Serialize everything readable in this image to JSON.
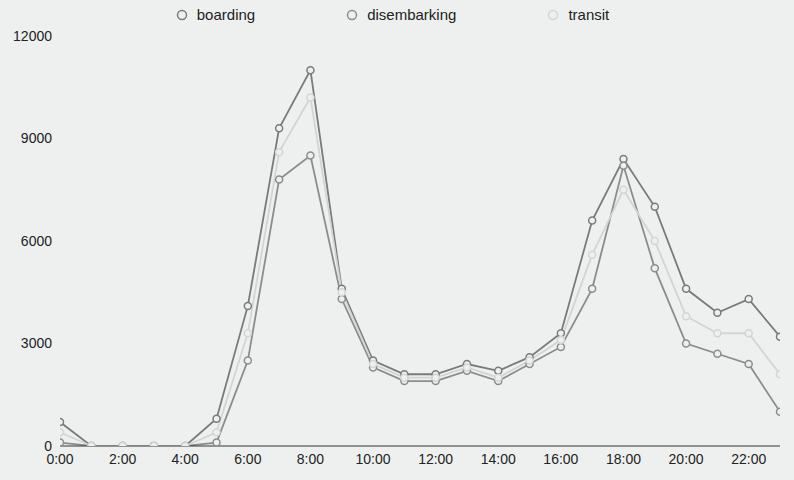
{
  "chart_data": {
    "type": "line",
    "x": [
      0,
      1,
      2,
      3,
      4,
      5,
      6,
      7,
      8,
      9,
      10,
      11,
      12,
      13,
      14,
      15,
      16,
      17,
      18,
      19,
      20,
      21,
      22,
      23
    ],
    "xlim": [
      0,
      23
    ],
    "xticks": [
      {
        "value": 0,
        "label": "0:00"
      },
      {
        "value": 2,
        "label": "2:00"
      },
      {
        "value": 4,
        "label": "4:00"
      },
      {
        "value": 6,
        "label": "6:00"
      },
      {
        "value": 8,
        "label": "8:00"
      },
      {
        "value": 10,
        "label": "10:00"
      },
      {
        "value": 12,
        "label": "12:00"
      },
      {
        "value": 14,
        "label": "14:00"
      },
      {
        "value": 16,
        "label": "16:00"
      },
      {
        "value": 18,
        "label": "18:00"
      },
      {
        "value": 20,
        "label": "20:00"
      },
      {
        "value": 22,
        "label": "22:00"
      }
    ],
    "ylim": [
      0,
      12000
    ],
    "yticks": [
      0,
      3000,
      6000,
      9000,
      12000
    ],
    "grid": false,
    "legend": "top",
    "marker": "circle",
    "series": [
      {
        "name": "boarding",
        "color": "#7a7a7a",
        "values": [
          700,
          0,
          0,
          0,
          0,
          800,
          4100,
          9300,
          11000,
          4600,
          2500,
          2100,
          2100,
          2400,
          2200,
          2600,
          3300,
          6600,
          8400,
          7000,
          4600,
          3900,
          4300,
          3200
        ]
      },
      {
        "name": "disembarking",
        "color": "#8c8c8c",
        "values": [
          100,
          0,
          0,
          0,
          0,
          100,
          2500,
          7800,
          8500,
          4300,
          2300,
          1900,
          1900,
          2200,
          1900,
          2400,
          2900,
          4600,
          8200,
          5200,
          3000,
          2700,
          2400,
          1000
        ]
      },
      {
        "name": "transit",
        "color": "#d4d4d4",
        "values": [
          400,
          0,
          0,
          0,
          0,
          400,
          3300,
          8600,
          10200,
          4500,
          2400,
          2000,
          2000,
          2300,
          2000,
          2500,
          3100,
          5600,
          7500,
          6000,
          3800,
          3300,
          3300,
          2100
        ]
      }
    ]
  }
}
